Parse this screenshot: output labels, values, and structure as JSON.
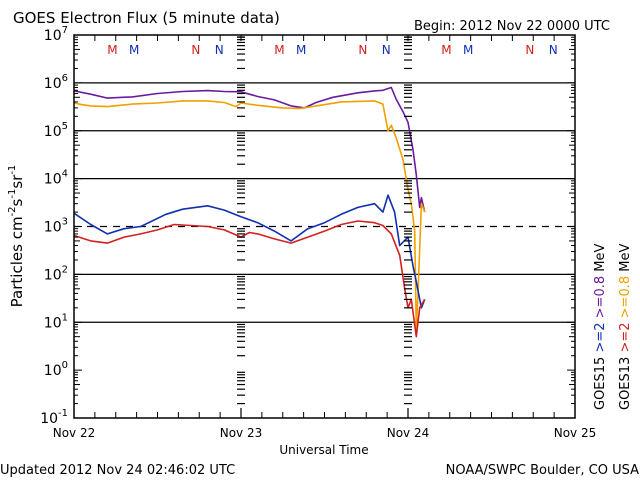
{
  "chart_data": {
    "type": "line",
    "title": "GOES Electron Flux (5 minute data)",
    "begin_label": "Begin: 2012 Nov 22 0000 UTC",
    "xlabel": "Universal Time",
    "ylabel_parts": [
      "Particles cm",
      "-2",
      "s",
      "-1",
      "sr",
      "-1"
    ],
    "x_unit": "days since 2012 Nov 22 00:00 UTC",
    "xlim": [
      0,
      3
    ],
    "x_ticks": [
      {
        "value": 0,
        "label": "Nov 22"
      },
      {
        "value": 1,
        "label": "Nov 23"
      },
      {
        "value": 2,
        "label": "Nov 24"
      },
      {
        "value": 3,
        "label": "Nov 25"
      }
    ],
    "ylog": true,
    "ylim_exp": [
      -1,
      7
    ],
    "y_ticks": [
      {
        "exp": 7,
        "label": "10",
        "sup": "7"
      },
      {
        "exp": 6,
        "label": "10",
        "sup": "6"
      },
      {
        "exp": 5,
        "label": "10",
        "sup": "5"
      },
      {
        "exp": 4,
        "label": "10",
        "sup": "4"
      },
      {
        "exp": 3,
        "label": "10",
        "sup": "3"
      },
      {
        "exp": 2,
        "label": "10",
        "sup": "2"
      },
      {
        "exp": 1,
        "label": "10",
        "sup": "1"
      },
      {
        "exp": 0,
        "label": "10",
        "sup": "0"
      },
      {
        "exp": -1,
        "label": "10",
        "sup": "-1"
      }
    ],
    "horizontal_grid_exp": [
      1,
      2,
      4,
      5,
      6
    ],
    "threshold_line": {
      "value": 1000,
      "style": "dashed"
    },
    "day_dividers": [
      1,
      2
    ],
    "local_time_markers": [
      {
        "x": 0.23,
        "label": "M",
        "color": "#d42020"
      },
      {
        "x": 0.36,
        "label": "M",
        "color": "#1030b0"
      },
      {
        "x": 0.73,
        "label": "N",
        "color": "#d42020"
      },
      {
        "x": 0.87,
        "label": "N",
        "color": "#1030b0"
      },
      {
        "x": 1.23,
        "label": "M",
        "color": "#d42020"
      },
      {
        "x": 1.36,
        "label": "M",
        "color": "#1030b0"
      },
      {
        "x": 1.73,
        "label": "N",
        "color": "#d42020"
      },
      {
        "x": 1.87,
        "label": "N",
        "color": "#1030b0"
      },
      {
        "x": 2.23,
        "label": "M",
        "color": "#d42020"
      },
      {
        "x": 2.36,
        "label": "M",
        "color": "#1030b0"
      },
      {
        "x": 2.73,
        "label": "N",
        "color": "#d42020"
      },
      {
        "x": 2.87,
        "label": "N",
        "color": "#1030b0"
      }
    ],
    "legend": {
      "placement": "right",
      "columns": [
        {
          "parts": [
            {
              "text": "GOES15",
              "color": "#000000"
            },
            {
              "text": ">=2",
              "color": "#1030b0"
            },
            {
              "text": ">=0.8",
              "color": "#6a1aa0"
            },
            {
              "text": "MeV",
              "color": "#000000"
            }
          ]
        },
        {
          "parts": [
            {
              "text": "GOES13",
              "color": "#000000"
            },
            {
              "text": ">=2",
              "color": "#d42020"
            },
            {
              "text": ">=0.8",
              "color": "#f0a000"
            },
            {
              "text": "MeV",
              "color": "#000000"
            }
          ]
        }
      ]
    },
    "series": [
      {
        "name": "GOES15 >=0.8 MeV",
        "color": "#6a1aa0",
        "x": [
          0,
          0.1,
          0.2,
          0.35,
          0.5,
          0.65,
          0.8,
          0.9,
          1.0,
          1.1,
          1.2,
          1.3,
          1.38,
          1.45,
          1.55,
          1.7,
          1.8,
          1.85,
          1.9,
          1.93,
          1.97,
          2.0,
          2.03,
          2.05,
          2.07,
          2.08,
          2.1
        ],
        "y": [
          680000,
          580000,
          480000,
          510000,
          600000,
          660000,
          690000,
          660000,
          650000,
          520000,
          440000,
          330000,
          300000,
          390000,
          500000,
          620000,
          680000,
          700000,
          800000,
          450000,
          250000,
          150000,
          40000,
          12000,
          2500,
          4000,
          2000
        ]
      },
      {
        "name": "GOES13 >=0.8 MeV",
        "color": "#f0a000",
        "x": [
          0,
          0.05,
          0.1,
          0.2,
          0.35,
          0.5,
          0.65,
          0.8,
          0.9,
          0.97,
          1.0,
          1.1,
          1.25,
          1.35,
          1.45,
          1.6,
          1.8,
          1.85,
          1.88,
          1.9,
          1.93,
          1.97,
          2.0,
          2.02,
          2.04,
          2.05,
          2.06,
          2.08,
          2.1
        ],
        "y": [
          380000,
          350000,
          330000,
          320000,
          360000,
          380000,
          420000,
          420000,
          390000,
          320000,
          380000,
          340000,
          300000,
          290000,
          330000,
          400000,
          420000,
          360000,
          100000,
          130000,
          70000,
          25000,
          6000,
          3000,
          800,
          7,
          40,
          3000,
          2000
        ]
      },
      {
        "name": "GOES15 >=2 MeV",
        "color": "#1030b0",
        "x": [
          0,
          0.1,
          0.2,
          0.3,
          0.4,
          0.55,
          0.65,
          0.8,
          0.9,
          1.0,
          1.1,
          1.2,
          1.3,
          1.4,
          1.5,
          1.6,
          1.7,
          1.8,
          1.85,
          1.88,
          1.92,
          1.95,
          2.0,
          2.03,
          2.05,
          2.08,
          2.1
        ],
        "y": [
          1900,
          1100,
          700,
          900,
          1000,
          1800,
          2300,
          2700,
          2200,
          1600,
          1200,
          800,
          500,
          900,
          1200,
          1800,
          2500,
          3000,
          2000,
          4500,
          2000,
          400,
          600,
          150,
          70,
          20,
          30
        ]
      },
      {
        "name": "GOES13 >=2 MeV",
        "color": "#d42020",
        "x": [
          0,
          0.1,
          0.2,
          0.3,
          0.4,
          0.5,
          0.6,
          0.7,
          0.8,
          0.9,
          1.0,
          1.05,
          1.1,
          1.2,
          1.3,
          1.4,
          1.5,
          1.6,
          1.7,
          1.8,
          1.85,
          1.9,
          1.95,
          1.98,
          2.0,
          2.02,
          2.05,
          2.07,
          2.1
        ],
        "y": [
          650,
          500,
          450,
          600,
          700,
          850,
          1100,
          1050,
          1000,
          850,
          600,
          750,
          700,
          550,
          450,
          600,
          800,
          1100,
          1300,
          1200,
          1050,
          700,
          250,
          50,
          20,
          30,
          5,
          20,
          30
        ]
      }
    ]
  },
  "footer": {
    "updated": "Updated 2012 Nov 24 02:46:02 UTC",
    "source": "NOAA/SWPC Boulder, CO USA"
  }
}
